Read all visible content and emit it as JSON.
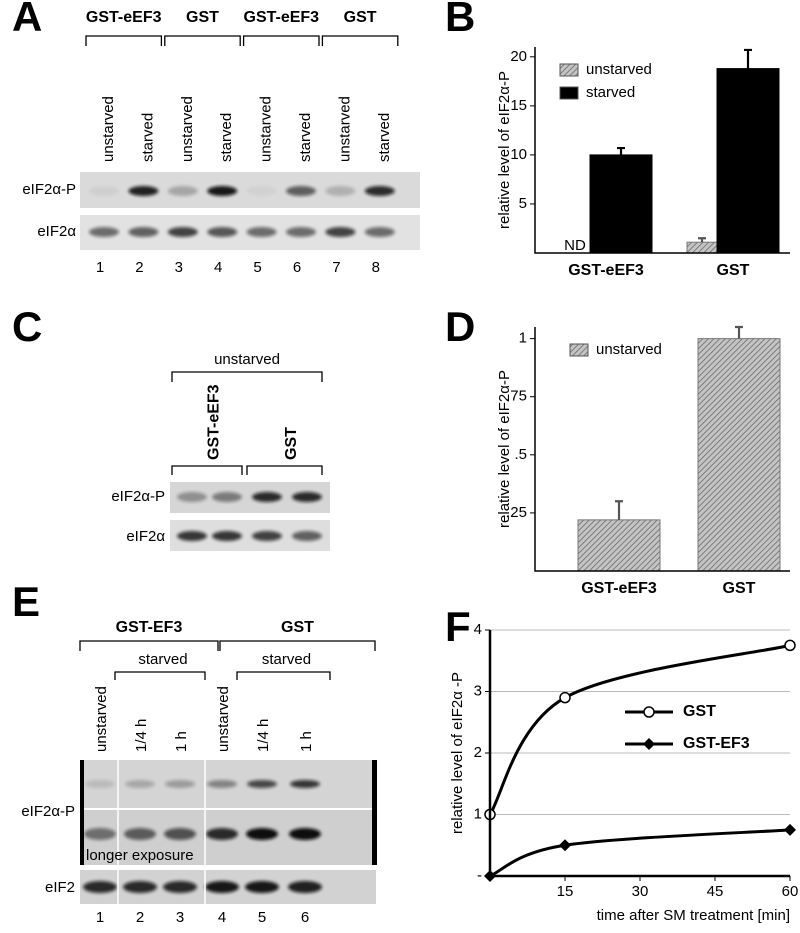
{
  "blots": [
    {
      "panel": "A",
      "groups": [
        "GST-eEF3",
        "GST",
        "GST-eEF3",
        "GST"
      ],
      "lanes": [
        "unstarved",
        "starved",
        "unstarved",
        "starved",
        "unstarved",
        "starved",
        "unstarved",
        "starved"
      ],
      "rows": [
        "eIF2α-P",
        "eIF2α"
      ],
      "lane_numbers": [
        "1",
        "2",
        "3",
        "4",
        "5",
        "6",
        "7",
        "8"
      ]
    },
    {
      "panel": "C",
      "title": "unstarved",
      "groups": [
        "GST-eEF3",
        "GST"
      ],
      "rows": [
        "eIF2α-P",
        "eIF2α"
      ]
    },
    {
      "panel": "E",
      "groups": [
        "GST-EF3",
        "GST"
      ],
      "subgroups": [
        "starved",
        "starved"
      ],
      "lanes": [
        "unstarved",
        "1/4 h",
        "1 h",
        "unstarved",
        "1/4 h",
        "1 h"
      ],
      "rows": [
        "eIF2α-P",
        "eIF2"
      ],
      "note": "longer exposure",
      "lane_numbers": [
        "1",
        "2",
        "3",
        "4",
        "5",
        "6"
      ]
    }
  ],
  "chart_data": [
    {
      "panel": "B",
      "type": "bar",
      "ylabel": "relative level of eIF2α-P",
      "categories": [
        "GST-eEF3",
        "GST"
      ],
      "series": [
        {
          "name": "unstarved",
          "color": "#999999",
          "pattern": "hatch",
          "values": [
            null,
            1.1
          ],
          "errors": [
            null,
            0.4
          ]
        },
        {
          "name": "starved",
          "color": "#000000",
          "values": [
            10,
            18.8
          ],
          "errors": [
            0.7,
            1.9
          ]
        }
      ],
      "annotations": [
        "ND"
      ],
      "ylim": [
        0,
        21
      ],
      "yticks": [
        5,
        10,
        15,
        20
      ]
    },
    {
      "panel": "D",
      "type": "bar",
      "ylabel": "relative level of eIF2α-P",
      "categories": [
        "GST-eEF3",
        "GST"
      ],
      "series": [
        {
          "name": "unstarved",
          "color": "#999999",
          "pattern": "hatch",
          "values": [
            0.22,
            1.0
          ],
          "errors": [
            0.08,
            0.05
          ]
        }
      ],
      "ylim": [
        0,
        1.05
      ],
      "yticks": [
        {
          "value": 0.25,
          "label": ".25"
        },
        {
          "value": 0.5,
          "label": ".5"
        },
        {
          "value": 0.75,
          "label": ".75"
        },
        1
      ]
    },
    {
      "panel": "F",
      "type": "line",
      "ylabel": "relative level of eIF2α -P",
      "xlabel": "time after SM treatment [min]",
      "x": [
        0,
        15,
        60
      ],
      "series": [
        {
          "name": "GST",
          "color": "#000000",
          "marker": "circle",
          "values": [
            1,
            2.9,
            3.75
          ]
        },
        {
          "name": "GST-EF3",
          "color": "#000000",
          "marker": "diamond",
          "values": [
            0,
            0.5,
            0.75
          ]
        }
      ],
      "xlim": [
        0,
        60
      ],
      "xticks": [
        15,
        30,
        45,
        60
      ],
      "ylim": [
        0,
        4
      ],
      "yticks": [
        {
          "value": 0,
          "label": "-"
        },
        1,
        2,
        3,
        4
      ],
      "grid": true
    }
  ]
}
